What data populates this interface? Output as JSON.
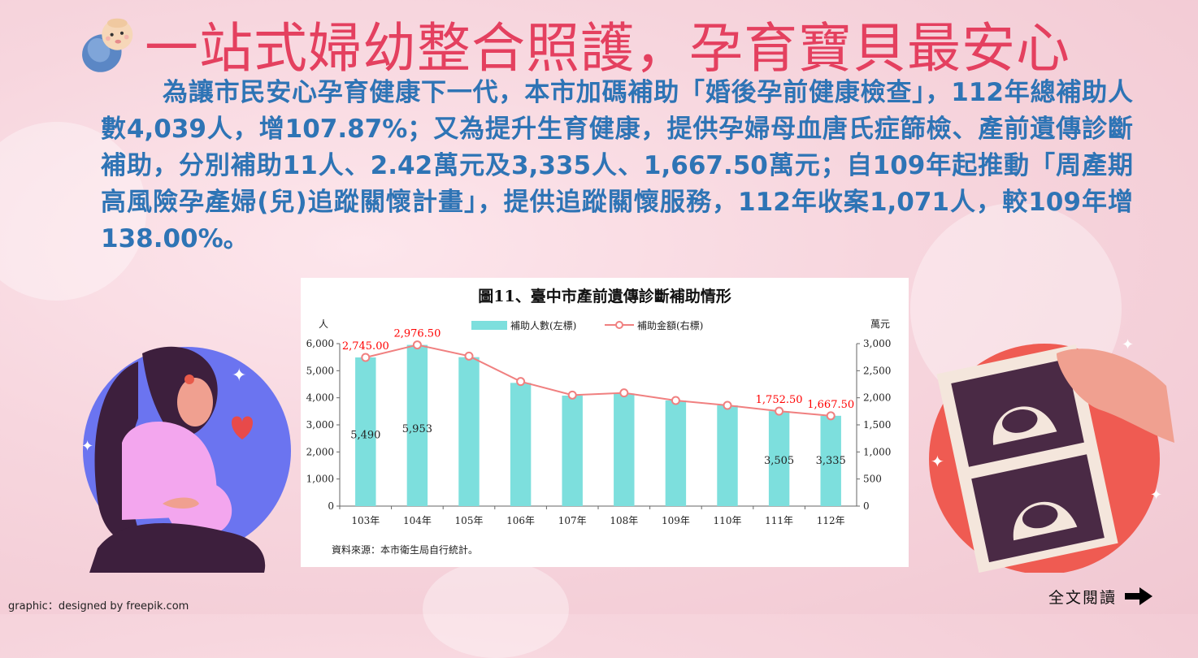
{
  "title": "一站式婦幼整合照護，孕育寶貝最安心",
  "paragraph": "為讓市民安心孕育健康下一代，本市加碼補助「婚後孕前健康檢查」，112年總補助人數4,039人，增107.87%；又為提升生育健康，提供孕婦母血唐氏症篩檢、產前遺傳診斷補助，分別補助11人、2.42萬元及3,335人、1,667.50萬元；自109年起推動「周產期高風險孕產婦(兒)追蹤關懷計畫」，提供追蹤關懷服務，112年收案1,071人，較109年增138.00%。",
  "credit": "graphic：designed by freepik.com",
  "read_more": "全文閱讀",
  "colors": {
    "title": "#e4405f",
    "paragraph": "#2e74b5",
    "bar": "#7ddfdd",
    "line": "#f08080",
    "label_red": "#ff0000"
  },
  "icons": {
    "baby": "baby-icon",
    "arrow": "arrow-right-icon"
  },
  "chart_data": {
    "type": "bar",
    "title": "圖11、臺中市產前遺傳診斷補助情形",
    "left_unit": "人",
    "right_unit": "萬元",
    "source": "資料來源：本市衛生局自行統計。",
    "categories": [
      "103年",
      "104年",
      "105年",
      "106年",
      "107年",
      "108年",
      "109年",
      "110年",
      "111年",
      "112年"
    ],
    "series": [
      {
        "name": "補助人數(左標)",
        "axis": "left",
        "type": "bar",
        "values": [
          5490,
          5953,
          5500,
          4550,
          4080,
          4160,
          3900,
          3720,
          3505,
          3335
        ],
        "labels": {
          "0": "5,490",
          "1": "5,953",
          "8": "3,505",
          "9": "3,335"
        }
      },
      {
        "name": "補助金額(右標)",
        "axis": "right",
        "type": "line",
        "values": [
          2745.0,
          2976.5,
          2770,
          2300,
          2050,
          2090,
          1950,
          1860,
          1752.5,
          1667.5
        ],
        "labels": {
          "0": "2,745.00",
          "1": "2,976.50",
          "8": "1,752.50",
          "9": "1,667.50"
        }
      }
    ],
    "left_ticks": [
      "0",
      "1,000",
      "2,000",
      "3,000",
      "4,000",
      "5,000",
      "6,000"
    ],
    "right_ticks": [
      "0",
      "500",
      "1,000",
      "1,500",
      "2,000",
      "2,500",
      "3,000"
    ],
    "ylim_left": [
      0,
      6000
    ],
    "ylim_right": [
      0,
      3000
    ],
    "legend": "top-center"
  }
}
